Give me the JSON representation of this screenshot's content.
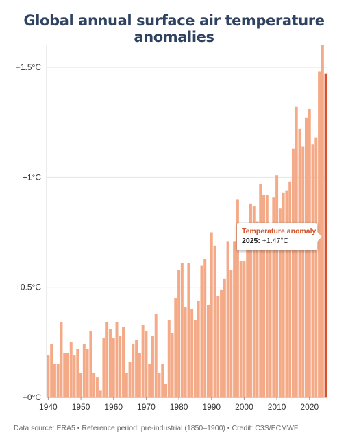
{
  "title": "Global annual surface air temperature anomalies",
  "footer": "Data source: ERA5 • Reference period: pre-industrial (1850–1900) • Credit: C3S/ECMWF",
  "tooltip": {
    "title": "Temperature anomaly",
    "year": "2025:",
    "value": "+1.47°C"
  },
  "colors": {
    "bar": "#f4a987",
    "highlight": "#d9502a",
    "title": "#2f4260",
    "grid": "#e6e6e6"
  },
  "chart_data": {
    "type": "bar",
    "title": "Global annual surface air temperature anomalies",
    "xlabel": "",
    "ylabel": "",
    "ylim": [
      0,
      1.6
    ],
    "yticks": [
      0,
      0.5,
      1,
      1.5
    ],
    "ytick_labels": [
      "+0°C",
      "+0.5°C",
      "+1°C",
      "+1.5°C"
    ],
    "xticks": [
      1940,
      1950,
      1960,
      1970,
      1980,
      1990,
      2000,
      2010,
      2020
    ],
    "xtick_labels": [
      "1940",
      "1950",
      "1960",
      "1970",
      "1980",
      "1990",
      "2000",
      "2010",
      "2020"
    ],
    "grid": "horizontal",
    "highlight_year": 2025,
    "years": [
      1940,
      1941,
      1942,
      1943,
      1944,
      1945,
      1946,
      1947,
      1948,
      1949,
      1950,
      1951,
      1952,
      1953,
      1954,
      1955,
      1956,
      1957,
      1958,
      1959,
      1960,
      1961,
      1962,
      1963,
      1964,
      1965,
      1966,
      1967,
      1968,
      1969,
      1970,
      1971,
      1972,
      1973,
      1974,
      1975,
      1976,
      1977,
      1978,
      1979,
      1980,
      1981,
      1982,
      1983,
      1984,
      1985,
      1986,
      1987,
      1988,
      1989,
      1990,
      1991,
      1992,
      1993,
      1994,
      1995,
      1996,
      1997,
      1998,
      1999,
      2000,
      2001,
      2002,
      2003,
      2004,
      2005,
      2006,
      2007,
      2008,
      2009,
      2010,
      2011,
      2012,
      2013,
      2014,
      2015,
      2016,
      2017,
      2018,
      2019,
      2020,
      2021,
      2022,
      2023,
      2024,
      2025
    ],
    "values": [
      0.19,
      0.24,
      0.15,
      0.15,
      0.34,
      0.2,
      0.2,
      0.25,
      0.19,
      0.22,
      0.11,
      0.24,
      0.22,
      0.3,
      0.11,
      0.09,
      0.03,
      0.27,
      0.34,
      0.31,
      0.27,
      0.34,
      0.28,
      0.32,
      0.11,
      0.16,
      0.24,
      0.26,
      0.2,
      0.33,
      0.3,
      0.15,
      0.28,
      0.38,
      0.11,
      0.15,
      0.06,
      0.35,
      0.29,
      0.45,
      0.58,
      0.61,
      0.41,
      0.61,
      0.4,
      0.35,
      0.44,
      0.6,
      0.63,
      0.42,
      0.75,
      0.69,
      0.46,
      0.49,
      0.54,
      0.71,
      0.58,
      0.71,
      0.9,
      0.62,
      0.62,
      0.76,
      0.88,
      0.87,
      0.8,
      0.97,
      0.92,
      0.92,
      0.77,
      0.91,
      1.01,
      0.86,
      0.93,
      0.94,
      0.98,
      1.13,
      1.32,
      1.22,
      1.14,
      1.27,
      1.31,
      1.15,
      1.18,
      1.48,
      1.6,
      1.47
    ]
  }
}
